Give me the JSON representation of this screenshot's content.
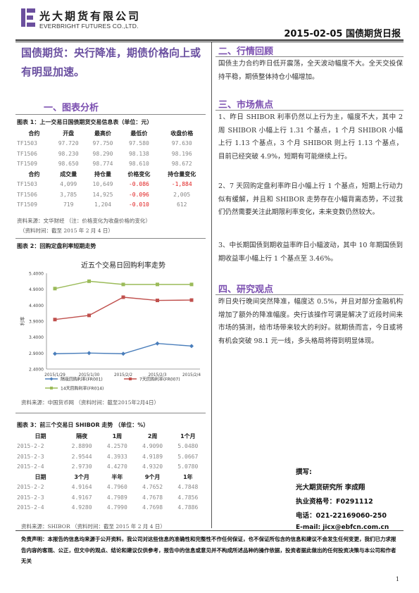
{
  "header": {
    "company_cn": "光大期货有限公司",
    "company_en": "EVERBRIGHT FUTURES CO.,LTD.",
    "date_title": "2015-02-05  国债期货日报"
  },
  "headline": "国债期货：央行降准，期债价格向上或有明显加速。",
  "section1": {
    "title": "一、图表分析",
    "table1": {
      "caption": "图表 1：上一交易日国债期货交易信息表（单位：元）",
      "headers1": [
        "合约",
        "开盘",
        "最高价",
        "最低价",
        "收盘价格"
      ],
      "rows1": [
        [
          "TF1503",
          "97.720",
          "97.750",
          "97.580",
          "97.630"
        ],
        [
          "TF1506",
          "98.230",
          "98.290",
          "98.138",
          "98.196"
        ],
        [
          "TF1509",
          "98.650",
          "98.774",
          "98.610",
          "98.672"
        ]
      ],
      "headers2": [
        "合约",
        "成交量",
        "持仓量",
        "价格变化",
        "持仓量变化"
      ],
      "rows2": [
        [
          "TF1503",
          "4,099",
          "10,649",
          "-0.086",
          "-1,884"
        ],
        [
          "TF1506",
          "3,785",
          "14,925",
          "-0.096",
          "2,005"
        ],
        [
          "TF1509",
          "719",
          "1,204",
          "-0.010",
          "612"
        ]
      ],
      "source": "资料来源：文华财经 （注：价格变化为收盘价格的变化）",
      "time": "（资料时间：截至 2015 年 2 月 4 日）"
    },
    "chart": {
      "caption": "图表 2：回购定盘利率短期走势",
      "source": "资料来源：中国货币网 （资料时间：截至2015年2月4日）"
    },
    "table3": {
      "caption": "图表 3：前三个交易日 SHIBOR 走势 （单位：%）",
      "headers1": [
        "日期",
        "隔夜",
        "1周",
        "2周",
        "1个月"
      ],
      "rows1": [
        [
          "2015-2-2",
          "2.8890",
          "4.2570",
          "4.9090",
          "5.0480"
        ],
        [
          "2015-2-3",
          "2.9544",
          "4.3933",
          "4.9189",
          "5.0667"
        ],
        [
          "2015-2-4",
          "2.9730",
          "4.4270",
          "4.9320",
          "5.0780"
        ]
      ],
      "headers2": [
        "日期",
        "3个月",
        "半年",
        "9个月",
        "1年"
      ],
      "rows2": [
        [
          "2015-2-2",
          "4.9164",
          "4.7960",
          "4.7652",
          "4.7848"
        ],
        [
          "2015-2-3",
          "4.9167",
          "4.7989",
          "4.7678",
          "4.7856"
        ],
        [
          "2015-2-4",
          "4.9280",
          "4.7990",
          "4.7698",
          "4.7886"
        ]
      ],
      "source": "资料来源：SHIBOR （资料时间：截至 2015 年 2 月 4 日）"
    }
  },
  "chart_data": {
    "type": "line",
    "title": "近五个交易日回购利率走势",
    "ylabel": "利率",
    "categories": [
      "2015/1/29",
      "2015/1/30",
      "2015/2/2",
      "2015/2/3",
      "2015/2/4"
    ],
    "ylim": [
      2.4,
      5.4
    ],
    "yticks": [
      "5.4000",
      "4.9000",
      "4.4000",
      "3.9000",
      "3.4000",
      "2.9000",
      "2.4000"
    ],
    "series": [
      {
        "name": "隔夜回购利率(FR001)",
        "color": "#4a7ebb",
        "marker": "diamond",
        "values": [
          2.88,
          2.9,
          2.88,
          3.2,
          3.12
        ]
      },
      {
        "name": "7天回购利率(FR007)",
        "color": "#c0504d",
        "marker": "square",
        "values": [
          3.95,
          4.08,
          4.65,
          4.55,
          4.56
        ]
      },
      {
        "name": "14天回购利率(FR014)",
        "color": "#9bbb59",
        "marker": "triangle",
        "values": [
          4.92,
          5.15,
          5.05,
          5.05,
          5.05
        ]
      }
    ],
    "grid": false,
    "legend": "bottom"
  },
  "section2": {
    "title": "二、行情回顾",
    "text": "国债主力合约昨日低开震荡，全天波动幅度不大。全天交投保持平稳，期债整体持仓小幅增加。"
  },
  "section3": {
    "title": "三、市场焦点",
    "p1": "1、昨日 SHIBOR 利率仍然以上行为主，幅度不大，其中 2 周 SHIBOR 小幅上行 1.31 个基点，1 个月 SHIBOR 小幅上行 1.13 个基点，3 个月 SHIBOR 则上行 1.13 个基点，目前已经突破 4.9%，短期有可能继续上行。",
    "p2": "2、7 天回购定盘利率昨日小幅上行 1 个基点，短期上行动力似有缓解，并且和 SHIBOR 走势存在小幅背离态势，不过我们仍然需要关注此期限利率变化，未来变数仍然较大。",
    "p3": "3、中长期国债到期收益率昨日小幅波动，其中 10 年期国债到期收益率小幅上行 1 个基点至 3.46%。"
  },
  "section4": {
    "title": "四、研究观点",
    "text": "昨日央行晚间突然降准，幅度达 0.5%，并且对部分金融机构增加了额外的降准幅度。央行该操作可谓是解决了近段时间来市场的猜测，给市场带来较大的利好。就期债而言，今日或将有机会突破 98.1 元一线，多头格局将得到明显体现。"
  },
  "author": {
    "label": "撰写:",
    "org": "光大期货研究所  李成翔",
    "cert": "执业资格号：F0291112",
    "phone": "电话：021-22169060-250",
    "email": "E-mail: jicx@ebfcn.com.cn"
  },
  "disclaimer": "免责声明：本报告的信息均来源于公开资料，我公司对这些信息的准确性和完整性不作任何保证，也不保证所包含的信息和建议不会发生任何变更，我们已力求报告内容的客观、公正，但文中的观点、结论和建议仅供参考，报告中的信息或意见并不构成所述品种的操作依据，投资者据此做出的任何投资决策与本公司和作者无关",
  "page_number": "1",
  "colors": {
    "accent": "#7b4fb0",
    "negative": "#e02020"
  }
}
